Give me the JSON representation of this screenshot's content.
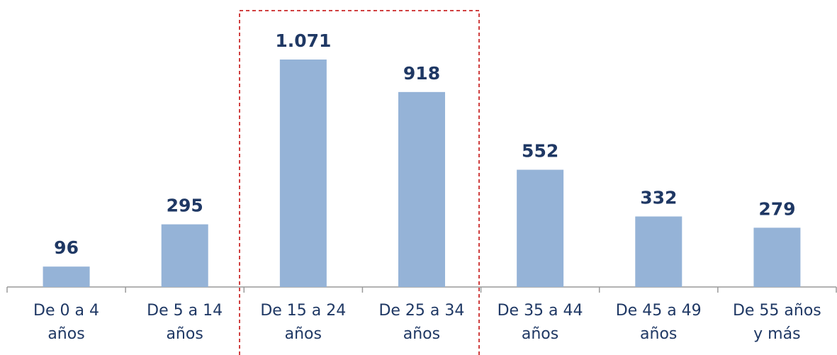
{
  "chart_data": {
    "type": "bar",
    "categories": [
      "De 0 a 4\naños",
      "De 5 a 14\naños",
      "De 15 a 24\naños",
      "De 25 a 34\naños",
      "De 35 a 44\naños",
      "De 45 a 49\naños",
      "De 55 años\ny más"
    ],
    "values": [
      96,
      295,
      1071,
      918,
      552,
      332,
      279
    ],
    "value_labels": [
      "96",
      "295",
      "1.071",
      "918",
      "552",
      "332",
      "279"
    ],
    "color": "#95b3d7"
  }
}
